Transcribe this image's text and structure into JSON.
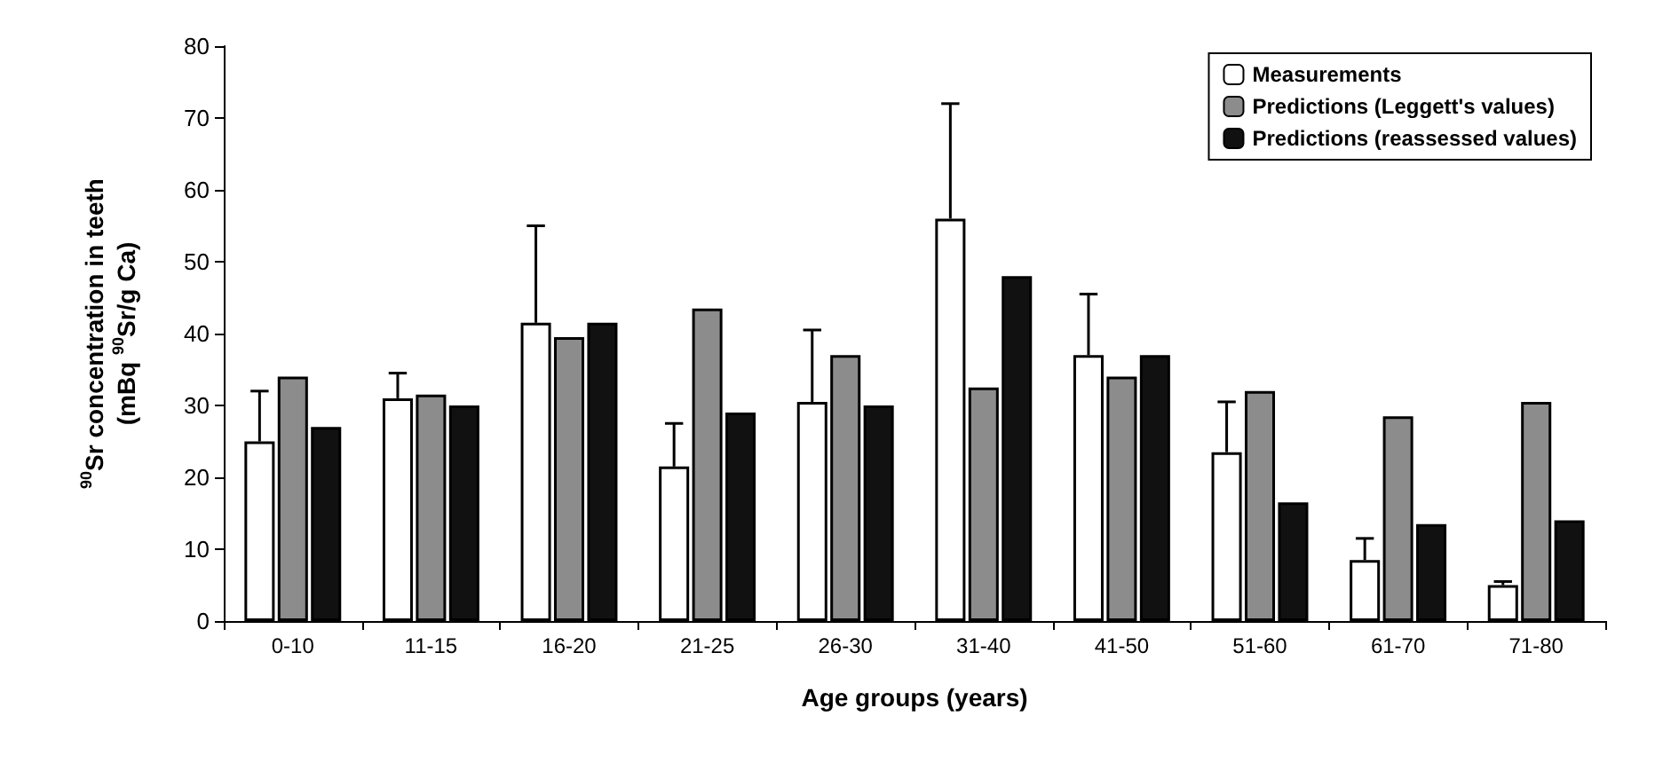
{
  "chart_data": {
    "type": "bar",
    "xlabel": "Age groups (years)",
    "ylabel": "$^{90}$Sr concentration in teeth\n(mBq $^{90}$Sr/g Ca)",
    "categories": [
      "0-10",
      "11-15",
      "16-20",
      "21-25",
      "26-30",
      "31-40",
      "41-50",
      "51-60",
      "61-70",
      "71-80"
    ],
    "series": [
      {
        "name": "Measurements",
        "color": "#ffffff",
        "values": [
          25,
          31,
          41.5,
          21.5,
          30.5,
          56,
          37,
          23.5,
          8.5,
          5
        ],
        "errors": [
          [
            25,
            32
          ],
          [
            31,
            34.5
          ],
          [
            41.5,
            55
          ],
          [
            21.5,
            27.5
          ],
          [
            30.5,
            40.5
          ],
          [
            56,
            72
          ],
          [
            37,
            45.5
          ],
          [
            23.5,
            30.5
          ],
          [
            8.5,
            11.5
          ],
          [
            5,
            5.5
          ]
        ]
      },
      {
        "name": "Predictions (Leggett's values)",
        "color": "#8c8c8c",
        "values": [
          34,
          31.5,
          39.5,
          43.5,
          37,
          32.5,
          34,
          32,
          28.5,
          30.5
        ]
      },
      {
        "name": "Predictions (reassessed values)",
        "color": "#111111",
        "values": [
          27,
          30,
          41.5,
          29,
          30,
          48,
          37,
          16.5,
          13.5,
          14
        ]
      }
    ],
    "ylim": [
      0,
      80
    ],
    "yticks": [
      0,
      10,
      20,
      30,
      40,
      50,
      60,
      70,
      80
    ],
    "grid": false,
    "legend": "top right"
  }
}
